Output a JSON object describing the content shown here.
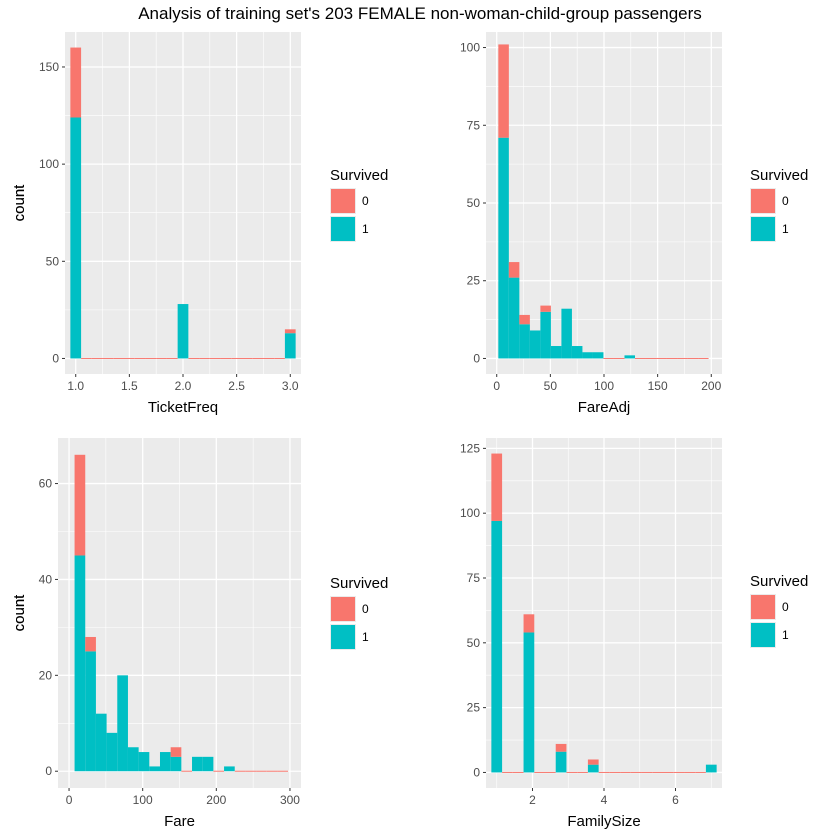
{
  "title": "Analysis of training set's 203 FEMALE non-woman-child-group passengers",
  "colors": {
    "survived_0": "#F8766D",
    "survived_1": "#00BFC4",
    "panel_bg": "#EBEBEB",
    "grid": "#FFFFFF"
  },
  "chart_data": [
    {
      "type": "bar",
      "subtype": "stacked-histogram",
      "xlabel": "TicketFreq",
      "ylabel": "count",
      "legend_title": "Survived",
      "legend": [
        "0",
        "1"
      ],
      "legend_placement": "right",
      "xlim": [
        0.9,
        3.1
      ],
      "ylim": [
        -8,
        168
      ],
      "xticks": [
        1.0,
        1.5,
        2.0,
        2.5,
        3.0
      ],
      "xtick_labels": [
        "1.0",
        "1.5",
        "2.0",
        "2.5",
        "3.0"
      ],
      "yticks": [
        0,
        50,
        100,
        150
      ],
      "bins": {
        "start": 0.95,
        "width": 0.1,
        "count": 21
      },
      "series": [
        {
          "name": "1",
          "values": [
            124,
            0,
            0,
            0,
            0,
            0,
            0,
            0,
            0,
            0,
            28,
            0,
            0,
            0,
            0,
            0,
            0,
            0,
            0,
            0,
            13
          ]
        },
        {
          "name": "0",
          "values": [
            36,
            0,
            0,
            0,
            0,
            0,
            0,
            0,
            0,
            0,
            0,
            0,
            0,
            0,
            0,
            0,
            0,
            0,
            0,
            0,
            2
          ]
        }
      ]
    },
    {
      "type": "bar",
      "subtype": "stacked-histogram",
      "xlabel": "FareAdj",
      "ylabel": "count",
      "legend_title": "Survived",
      "legend": [
        "0",
        "1"
      ],
      "legend_placement": "right",
      "xlim": [
        -10,
        210
      ],
      "ylim": [
        -5,
        105
      ],
      "xticks": [
        0,
        50,
        100,
        150,
        200
      ],
      "xtick_labels": [
        "0",
        "50",
        "100",
        "150",
        "200"
      ],
      "yticks": [
        0,
        25,
        50,
        75,
        100
      ],
      "bins": {
        "start": 1.5,
        "width": 9.8,
        "count": 20
      },
      "series": [
        {
          "name": "1",
          "values": [
            71,
            26,
            11,
            9,
            15,
            4,
            16,
            4,
            2,
            2,
            0,
            0,
            1,
            0,
            0,
            0,
            0,
            0,
            0,
            0
          ]
        },
        {
          "name": "0",
          "values": [
            30,
            5,
            3,
            0,
            2,
            0,
            0,
            0,
            0,
            0,
            0,
            0,
            0,
            0,
            0,
            0,
            0,
            0,
            0,
            0
          ]
        }
      ]
    },
    {
      "type": "bar",
      "subtype": "stacked-histogram",
      "xlabel": "Fare",
      "ylabel": "count",
      "legend_title": "Survived",
      "legend": [
        "0",
        "1"
      ],
      "legend_placement": "right",
      "xlim": [
        -15,
        315
      ],
      "ylim": [
        -3.5,
        69.5
      ],
      "xticks": [
        0,
        100,
        200,
        300
      ],
      "xtick_labels": [
        "0",
        "100",
        "200",
        "300"
      ],
      "yticks": [
        0,
        20,
        40,
        60
      ],
      "bins": {
        "start": 7.5,
        "width": 14.5,
        "count": 20
      },
      "series": [
        {
          "name": "1",
          "values": [
            45,
            25,
            12,
            8,
            20,
            5,
            4,
            1,
            4,
            3,
            0,
            3,
            3,
            0,
            1,
            0,
            0,
            0,
            0,
            0
          ]
        },
        {
          "name": "0",
          "values": [
            21,
            3,
            0,
            0,
            0,
            0,
            0,
            0,
            0,
            2,
            0,
            0,
            0,
            0,
            0,
            0,
            0,
            0,
            0,
            0
          ]
        }
      ]
    },
    {
      "type": "bar",
      "subtype": "stacked-histogram",
      "xlabel": "FamilySize",
      "ylabel": "count",
      "legend_title": "Survived",
      "legend": [
        "0",
        "1"
      ],
      "legend_placement": "right",
      "xlim": [
        0.7,
        7.3
      ],
      "ylim": [
        -6,
        129
      ],
      "xticks": [
        2,
        4,
        6
      ],
      "xtick_labels": [
        "2",
        "4",
        "6"
      ],
      "yticks": [
        0,
        25,
        50,
        75,
        100,
        125
      ],
      "bins": {
        "start": 0.85,
        "width": 0.3,
        "count": 21
      },
      "series": [
        {
          "name": "1",
          "values": [
            97,
            0,
            0,
            54,
            0,
            0,
            8,
            0,
            0,
            3,
            0,
            0,
            0,
            0,
            0,
            0,
            0,
            0,
            0,
            0,
            3
          ]
        },
        {
          "name": "0",
          "values": [
            26,
            0,
            0,
            7,
            0,
            0,
            3,
            0,
            0,
            2,
            0,
            0,
            0,
            0,
            0,
            0,
            0,
            0,
            0,
            0,
            0
          ]
        }
      ]
    }
  ]
}
